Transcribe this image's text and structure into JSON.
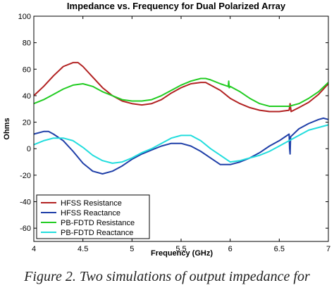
{
  "caption": "Figure 2. Two simulations of output impedance for",
  "chart_data": {
    "type": "line",
    "title": "Impedance vs. Frequency for Dual Polarized Array",
    "xlabel": "Frequency (GHz)",
    "ylabel": "Ohms",
    "xlim": [
      4,
      7
    ],
    "ylim": [
      -70,
      100
    ],
    "xticks": [
      4,
      4.5,
      5,
      5.5,
      6,
      6.5,
      7
    ],
    "xtick_labels": [
      "4",
      "4.5",
      "5",
      "5.5",
      "6",
      "6.5",
      "7"
    ],
    "yticks": [
      -60,
      -40,
      -20,
      0,
      20,
      40,
      60,
      80,
      100
    ],
    "ytick_labels": [
      "-60",
      "-40",
      "-20",
      "0",
      "20",
      "40",
      "60",
      "80",
      "100"
    ],
    "grid": false,
    "legend_position": "bottom-left",
    "series": [
      {
        "name": "HFSS Resistance",
        "color": "#b22222",
        "x": [
          4.0,
          4.1,
          4.2,
          4.3,
          4.4,
          4.45,
          4.5,
          4.6,
          4.7,
          4.8,
          4.9,
          5.0,
          5.1,
          5.2,
          5.3,
          5.4,
          5.5,
          5.6,
          5.7,
          5.75,
          5.8,
          5.9,
          6.0,
          6.1,
          6.2,
          6.3,
          6.4,
          6.5,
          6.6,
          6.61,
          6.62,
          6.7,
          6.8,
          6.9,
          7.0
        ],
        "y": [
          40,
          47,
          55,
          62,
          65,
          65,
          62,
          54,
          46,
          40,
          36,
          34,
          33,
          34,
          37,
          42,
          46,
          49,
          50,
          50,
          48,
          44,
          38,
          34,
          31,
          29,
          28,
          28,
          29,
          34,
          28,
          31,
          35,
          41,
          49
        ]
      },
      {
        "name": "HFSS Reactance",
        "color": "#1f3fa8",
        "x": [
          4.0,
          4.1,
          4.15,
          4.2,
          4.3,
          4.4,
          4.5,
          4.6,
          4.7,
          4.8,
          4.9,
          5.0,
          5.1,
          5.2,
          5.3,
          5.4,
          5.5,
          5.6,
          5.7,
          5.8,
          5.9,
          6.0,
          6.1,
          6.2,
          6.3,
          6.4,
          6.5,
          6.6,
          6.605,
          6.61,
          6.615,
          6.7,
          6.8,
          6.9,
          6.95,
          7.0
        ],
        "y": [
          11,
          13,
          13,
          11,
          6,
          -2,
          -11,
          -17,
          -19,
          -17,
          -13,
          -8,
          -4,
          -1,
          2,
          4,
          4,
          2,
          -2,
          -7,
          -12,
          -12,
          -10,
          -7,
          -3,
          2,
          6,
          11,
          0,
          -4,
          9,
          15,
          19,
          22,
          23,
          22
        ]
      },
      {
        "name": "PB-FDTD Resistance",
        "color": "#22cc22",
        "x": [
          4.0,
          4.1,
          4.2,
          4.3,
          4.4,
          4.5,
          4.6,
          4.7,
          4.8,
          4.9,
          5.0,
          5.1,
          5.2,
          5.3,
          5.4,
          5.5,
          5.6,
          5.7,
          5.75,
          5.8,
          5.9,
          5.98,
          5.985,
          5.99,
          6.0,
          6.1,
          6.2,
          6.3,
          6.4,
          6.5,
          6.6,
          6.7,
          6.8,
          6.9,
          7.0
        ],
        "y": [
          34,
          37,
          41,
          45,
          48,
          49,
          47,
          43,
          40,
          37,
          36,
          36,
          37,
          40,
          44,
          48,
          51,
          53,
          53,
          52,
          49,
          47,
          51,
          46,
          47,
          43,
          38,
          34,
          32,
          32,
          32,
          34,
          38,
          43,
          50
        ]
      },
      {
        "name": "PB-FDTD Reactance",
        "color": "#22dddd",
        "x": [
          4.0,
          4.1,
          4.2,
          4.3,
          4.4,
          4.5,
          4.6,
          4.7,
          4.8,
          4.9,
          5.0,
          5.1,
          5.2,
          5.3,
          5.4,
          5.5,
          5.6,
          5.7,
          5.8,
          5.9,
          5.98,
          6.0,
          6.1,
          6.2,
          6.3,
          6.4,
          6.5,
          6.6,
          6.7,
          6.8,
          6.9,
          7.0
        ],
        "y": [
          3,
          6,
          8,
          8,
          6,
          1,
          -5,
          -9,
          -11,
          -10,
          -7,
          -3,
          0,
          4,
          8,
          10,
          10,
          6,
          0,
          -5,
          -9,
          -10,
          -9,
          -7,
          -5,
          -2,
          2,
          6,
          10,
          14,
          16,
          18
        ]
      }
    ]
  }
}
